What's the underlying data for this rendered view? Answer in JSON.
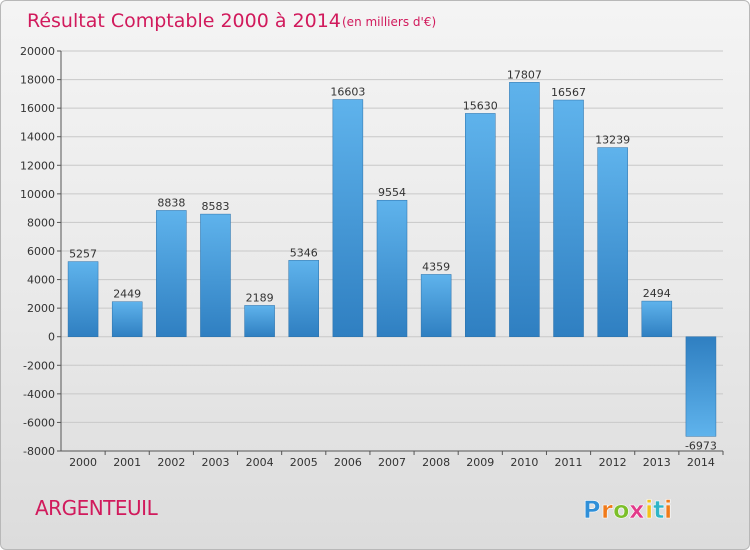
{
  "chart_data": {
    "type": "bar",
    "title": "Résultat Comptable 2000 à 2014",
    "subtitle": "(en milliers d'€)",
    "xlabel": "",
    "ylabel": "",
    "categories": [
      "2000",
      "2001",
      "2002",
      "2003",
      "2004",
      "2005",
      "2006",
      "2007",
      "2008",
      "2009",
      "2010",
      "2011",
      "2012",
      "2013",
      "2014"
    ],
    "values": [
      5257,
      2449,
      8838,
      8583,
      2189,
      5346,
      16603,
      9554,
      4359,
      15630,
      17807,
      16567,
      13239,
      2494,
      -6973
    ],
    "ylim": [
      -8000,
      20000
    ],
    "yticks": [
      -8000,
      -6000,
      -4000,
      -2000,
      0,
      2000,
      4000,
      6000,
      8000,
      10000,
      12000,
      14000,
      16000,
      18000,
      20000
    ],
    "grid": true,
    "legend": "none"
  },
  "location": "ARGENTEUIL",
  "brand": {
    "letters": [
      "P",
      "r",
      "o",
      "x",
      "i",
      "t",
      "i"
    ],
    "colors": [
      "#2f8fd8",
      "#f07a1a",
      "#7cbf2a",
      "#e23a8a",
      "#f2c21b",
      "#2fb5c8",
      "#f07a1a"
    ]
  },
  "colors": {
    "title": "#d11a5c",
    "location": "#d11a5c",
    "bar_top": "#5fb3ec",
    "bar_bottom": "#2f7fc1",
    "grid": "#c8c8c8",
    "axis_text": "#333333"
  }
}
